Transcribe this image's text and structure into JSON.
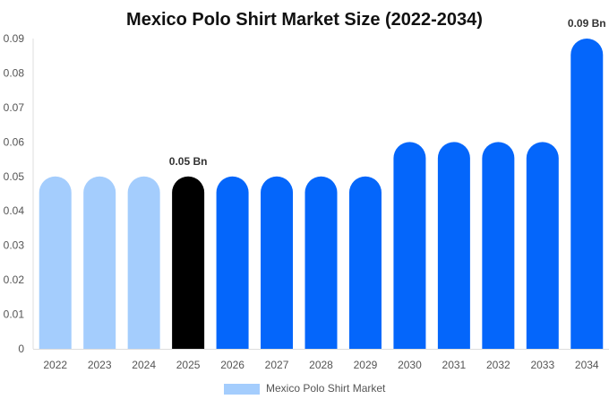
{
  "chart_data": {
    "type": "bar",
    "title": "Mexico Polo Shirt Market Size (2022-2034)",
    "categories": [
      "2022",
      "2023",
      "2024",
      "2025",
      "2026",
      "2027",
      "2028",
      "2029",
      "2030",
      "2031",
      "2032",
      "2033",
      "2034"
    ],
    "series": [
      {
        "name": "Mexico Polo Shirt Market",
        "values": [
          0.05,
          0.05,
          0.05,
          0.05,
          0.05,
          0.05,
          0.05,
          0.05,
          0.06,
          0.06,
          0.06,
          0.06,
          0.09
        ]
      }
    ],
    "bar_colors": [
      "#a4cdfd",
      "#a4cdfd",
      "#a4cdfd",
      "#000000",
      "#0466fb",
      "#0466fb",
      "#0466fb",
      "#0466fb",
      "#0466fb",
      "#0466fb",
      "#0466fb",
      "#0466fb",
      "#0466fb"
    ],
    "legend_color": "#a4cdfd",
    "data_labels": [
      {
        "category": "2025",
        "text": "0.05 Bn"
      },
      {
        "category": "2034",
        "text": "0.09 Bn"
      }
    ],
    "yticks": [
      "0",
      "0.01",
      "0.02",
      "0.03",
      "0.04",
      "0.05",
      "0.06",
      "0.07",
      "0.08",
      "0.09"
    ],
    "ylim": [
      0,
      0.09
    ],
    "xlabel": "",
    "ylabel": "",
    "grid": false,
    "legend_position": "bottom-center"
  }
}
